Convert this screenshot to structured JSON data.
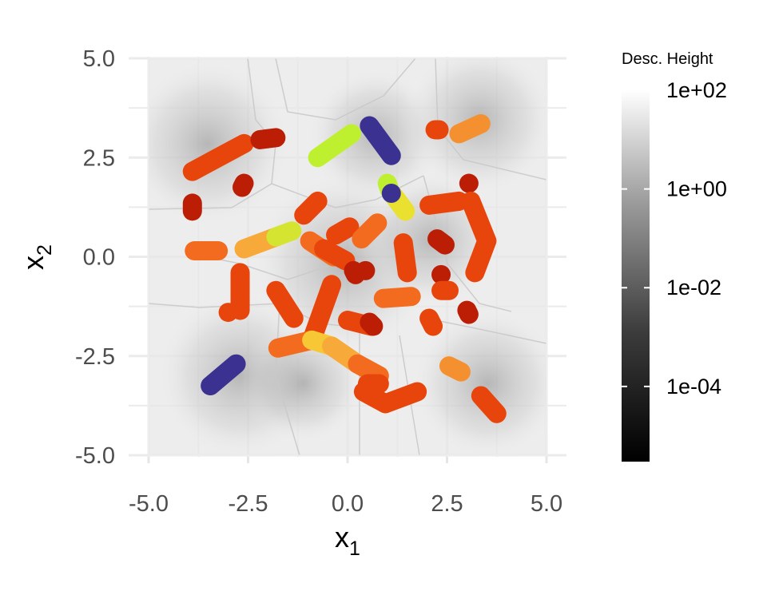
{
  "chart_data": {
    "type": "scatter",
    "title": "",
    "xlabel": "x",
    "xlabel_subscript": "1",
    "ylabel": "x",
    "ylabel_subscript": "2",
    "xlim": [
      -5,
      5
    ],
    "ylim": [
      -5,
      5
    ],
    "x_ticks": [
      {
        "value": -5,
        "label": "-5.0"
      },
      {
        "value": -2.5,
        "label": "-2.5"
      },
      {
        "value": 0,
        "label": "0.0"
      },
      {
        "value": 2.5,
        "label": "2.5"
      },
      {
        "value": 5,
        "label": "5.0"
      }
    ],
    "y_ticks": [
      {
        "value": 5,
        "label": "5.0"
      },
      {
        "value": 2.5,
        "label": "2.5"
      },
      {
        "value": 0,
        "label": "0.0"
      },
      {
        "value": -2.5,
        "label": "-2.5"
      },
      {
        "value": -5,
        "label": "-5.0"
      }
    ],
    "grid": true,
    "background": "grayscale descent-height field",
    "legend": {
      "title": "Desc. Height",
      "placement": "right",
      "scale": "log",
      "range": [
        3e-06,
        100
      ],
      "ticks": [
        {
          "value": 100,
          "label": "1e+02"
        },
        {
          "value": 1,
          "label": "1e+00"
        },
        {
          "value": 0.01,
          "label": "1e-02"
        },
        {
          "value": 0.0001,
          "label": "1e-04"
        }
      ],
      "colors": [
        "#000000",
        "#ffffff"
      ]
    },
    "segments": [
      {
        "x1": -3.9,
        "y1": 2.15,
        "x2": -2.6,
        "y2": 2.85,
        "color": "#e8450d"
      },
      {
        "x1": -2.2,
        "y1": 2.95,
        "x2": -1.8,
        "y2": 3.0,
        "color": "#bb1d05"
      },
      {
        "x1": -2.65,
        "y1": 1.75,
        "x2": -2.6,
        "y2": 1.85,
        "color": "#bb1d05"
      },
      {
        "x1": -3.9,
        "y1": 1.35,
        "x2": -3.9,
        "y2": 1.15,
        "color": "#bb1d05"
      },
      {
        "x1": -0.75,
        "y1": 2.5,
        "x2": 0.1,
        "y2": 3.1,
        "color": "#bff030"
      },
      {
        "x1": 0.55,
        "y1": 3.3,
        "x2": 1.1,
        "y2": 2.55,
        "color": "#3a3190"
      },
      {
        "x1": 2.2,
        "y1": 3.2,
        "x2": 2.3,
        "y2": 3.2,
        "color": "#e8450d"
      },
      {
        "x1": 2.8,
        "y1": 3.1,
        "x2": 3.35,
        "y2": 3.35,
        "color": "#f59030"
      },
      {
        "x1": 3.05,
        "y1": 1.85,
        "x2": 3.05,
        "y2": 1.85,
        "color": "#bb1d05"
      },
      {
        "x1": 1.0,
        "y1": 1.85,
        "x2": 1.05,
        "y2": 1.7,
        "color": "#bff030"
      },
      {
        "x1": 1.15,
        "y1": 1.55,
        "x2": 1.45,
        "y2": 1.15,
        "color": "#e9e030"
      },
      {
        "x1": 1.1,
        "y1": 1.6,
        "x2": 1.1,
        "y2": 1.6,
        "color": "#3a3190"
      },
      {
        "x1": 2.05,
        "y1": 1.3,
        "x2": 2.8,
        "y2": 1.4,
        "color": "#e8450d"
      },
      {
        "x1": 3.1,
        "y1": 1.4,
        "x2": 3.5,
        "y2": 0.4,
        "color": "#e8450d"
      },
      {
        "x1": 3.5,
        "y1": 0.4,
        "x2": 3.2,
        "y2": -0.4,
        "color": "#e8450d"
      },
      {
        "x1": -1.1,
        "y1": 1.05,
        "x2": -0.75,
        "y2": 1.4,
        "color": "#e8450d"
      },
      {
        "x1": -2.6,
        "y1": 0.2,
        "x2": -1.8,
        "y2": 0.5,
        "color": "#f7a93a"
      },
      {
        "x1": -1.8,
        "y1": 0.5,
        "x2": -1.4,
        "y2": 0.65,
        "color": "#d4e430"
      },
      {
        "x1": -3.85,
        "y1": 0.15,
        "x2": -3.25,
        "y2": 0.15,
        "color": "#f36b1e"
      },
      {
        "x1": -0.95,
        "y1": 0.4,
        "x2": -0.35,
        "y2": 0.0,
        "color": "#f36b1e"
      },
      {
        "x1": -0.6,
        "y1": 0.2,
        "x2": -0.05,
        "y2": -0.1,
        "color": "#e8450d"
      },
      {
        "x1": -0.3,
        "y1": 0.55,
        "x2": 0.05,
        "y2": 0.75,
        "color": "#e8450d"
      },
      {
        "x1": 0.35,
        "y1": 0.45,
        "x2": 0.75,
        "y2": 0.85,
        "color": "#f36b1e"
      },
      {
        "x1": 1.4,
        "y1": 0.35,
        "x2": 1.5,
        "y2": -0.4,
        "color": "#e8450d"
      },
      {
        "x1": 2.25,
        "y1": 0.45,
        "x2": 2.45,
        "y2": 0.3,
        "color": "#bb1d05"
      },
      {
        "x1": 0.15,
        "y1": -0.35,
        "x2": 0.2,
        "y2": -0.45,
        "color": "#bb1d05"
      },
      {
        "x1": 0.45,
        "y1": -0.35,
        "x2": 0.45,
        "y2": -0.35,
        "color": "#bb1d05"
      },
      {
        "x1": 2.35,
        "y1": -0.45,
        "x2": 2.35,
        "y2": -0.45,
        "color": "#bb1d05"
      },
      {
        "x1": 2.35,
        "y1": -0.85,
        "x2": 2.55,
        "y2": -0.85,
        "color": "#e8450d"
      },
      {
        "x1": -2.7,
        "y1": -0.4,
        "x2": -2.7,
        "y2": -1.35,
        "color": "#e8450d"
      },
      {
        "x1": -3.0,
        "y1": -1.4,
        "x2": -3.0,
        "y2": -1.4,
        "color": "#e8450d"
      },
      {
        "x1": -1.8,
        "y1": -0.85,
        "x2": -1.35,
        "y2": -1.55,
        "color": "#e8450d"
      },
      {
        "x1": -0.4,
        "y1": -0.7,
        "x2": -0.9,
        "y2": -2.1,
        "color": "#e8450d"
      },
      {
        "x1": 0.9,
        "y1": -1.05,
        "x2": 1.6,
        "y2": -1.0,
        "color": "#f36b1e"
      },
      {
        "x1": 3.0,
        "y1": -1.35,
        "x2": 3.05,
        "y2": -1.45,
        "color": "#bb1d05"
      },
      {
        "x1": 2.05,
        "y1": -1.55,
        "x2": 2.15,
        "y2": -1.75,
        "color": "#e8450d"
      },
      {
        "x1": 0.0,
        "y1": -1.6,
        "x2": 0.6,
        "y2": -1.75,
        "color": "#e8450d"
      },
      {
        "x1": 0.55,
        "y1": -1.65,
        "x2": 0.65,
        "y2": -1.75,
        "color": "#bb1d05"
      },
      {
        "x1": -1.75,
        "y1": -2.3,
        "x2": -0.9,
        "y2": -2.1,
        "color": "#f36b1e"
      },
      {
        "x1": -0.9,
        "y1": -2.1,
        "x2": -0.4,
        "y2": -2.25,
        "color": "#f7c735"
      },
      {
        "x1": -0.4,
        "y1": -2.25,
        "x2": 0.25,
        "y2": -2.7,
        "color": "#f7a93a"
      },
      {
        "x1": 0.25,
        "y1": -2.7,
        "x2": 0.8,
        "y2": -3.0,
        "color": "#f36b1e"
      },
      {
        "x1": 0.5,
        "y1": -3.2,
        "x2": 0.8,
        "y2": -3.2,
        "color": "#e8450d"
      },
      {
        "x1": 0.4,
        "y1": -3.4,
        "x2": 0.95,
        "y2": -3.7,
        "color": "#e8450d"
      },
      {
        "x1": 0.95,
        "y1": -3.7,
        "x2": 1.75,
        "y2": -3.4,
        "color": "#e8450d"
      },
      {
        "x1": 2.55,
        "y1": -2.75,
        "x2": 2.85,
        "y2": -2.9,
        "color": "#f59030"
      },
      {
        "x1": 3.35,
        "y1": -3.5,
        "x2": 3.75,
        "y2": -3.95,
        "color": "#e8450d"
      },
      {
        "x1": -3.45,
        "y1": -3.25,
        "x2": -2.8,
        "y2": -2.7,
        "color": "#3a3190"
      }
    ]
  }
}
